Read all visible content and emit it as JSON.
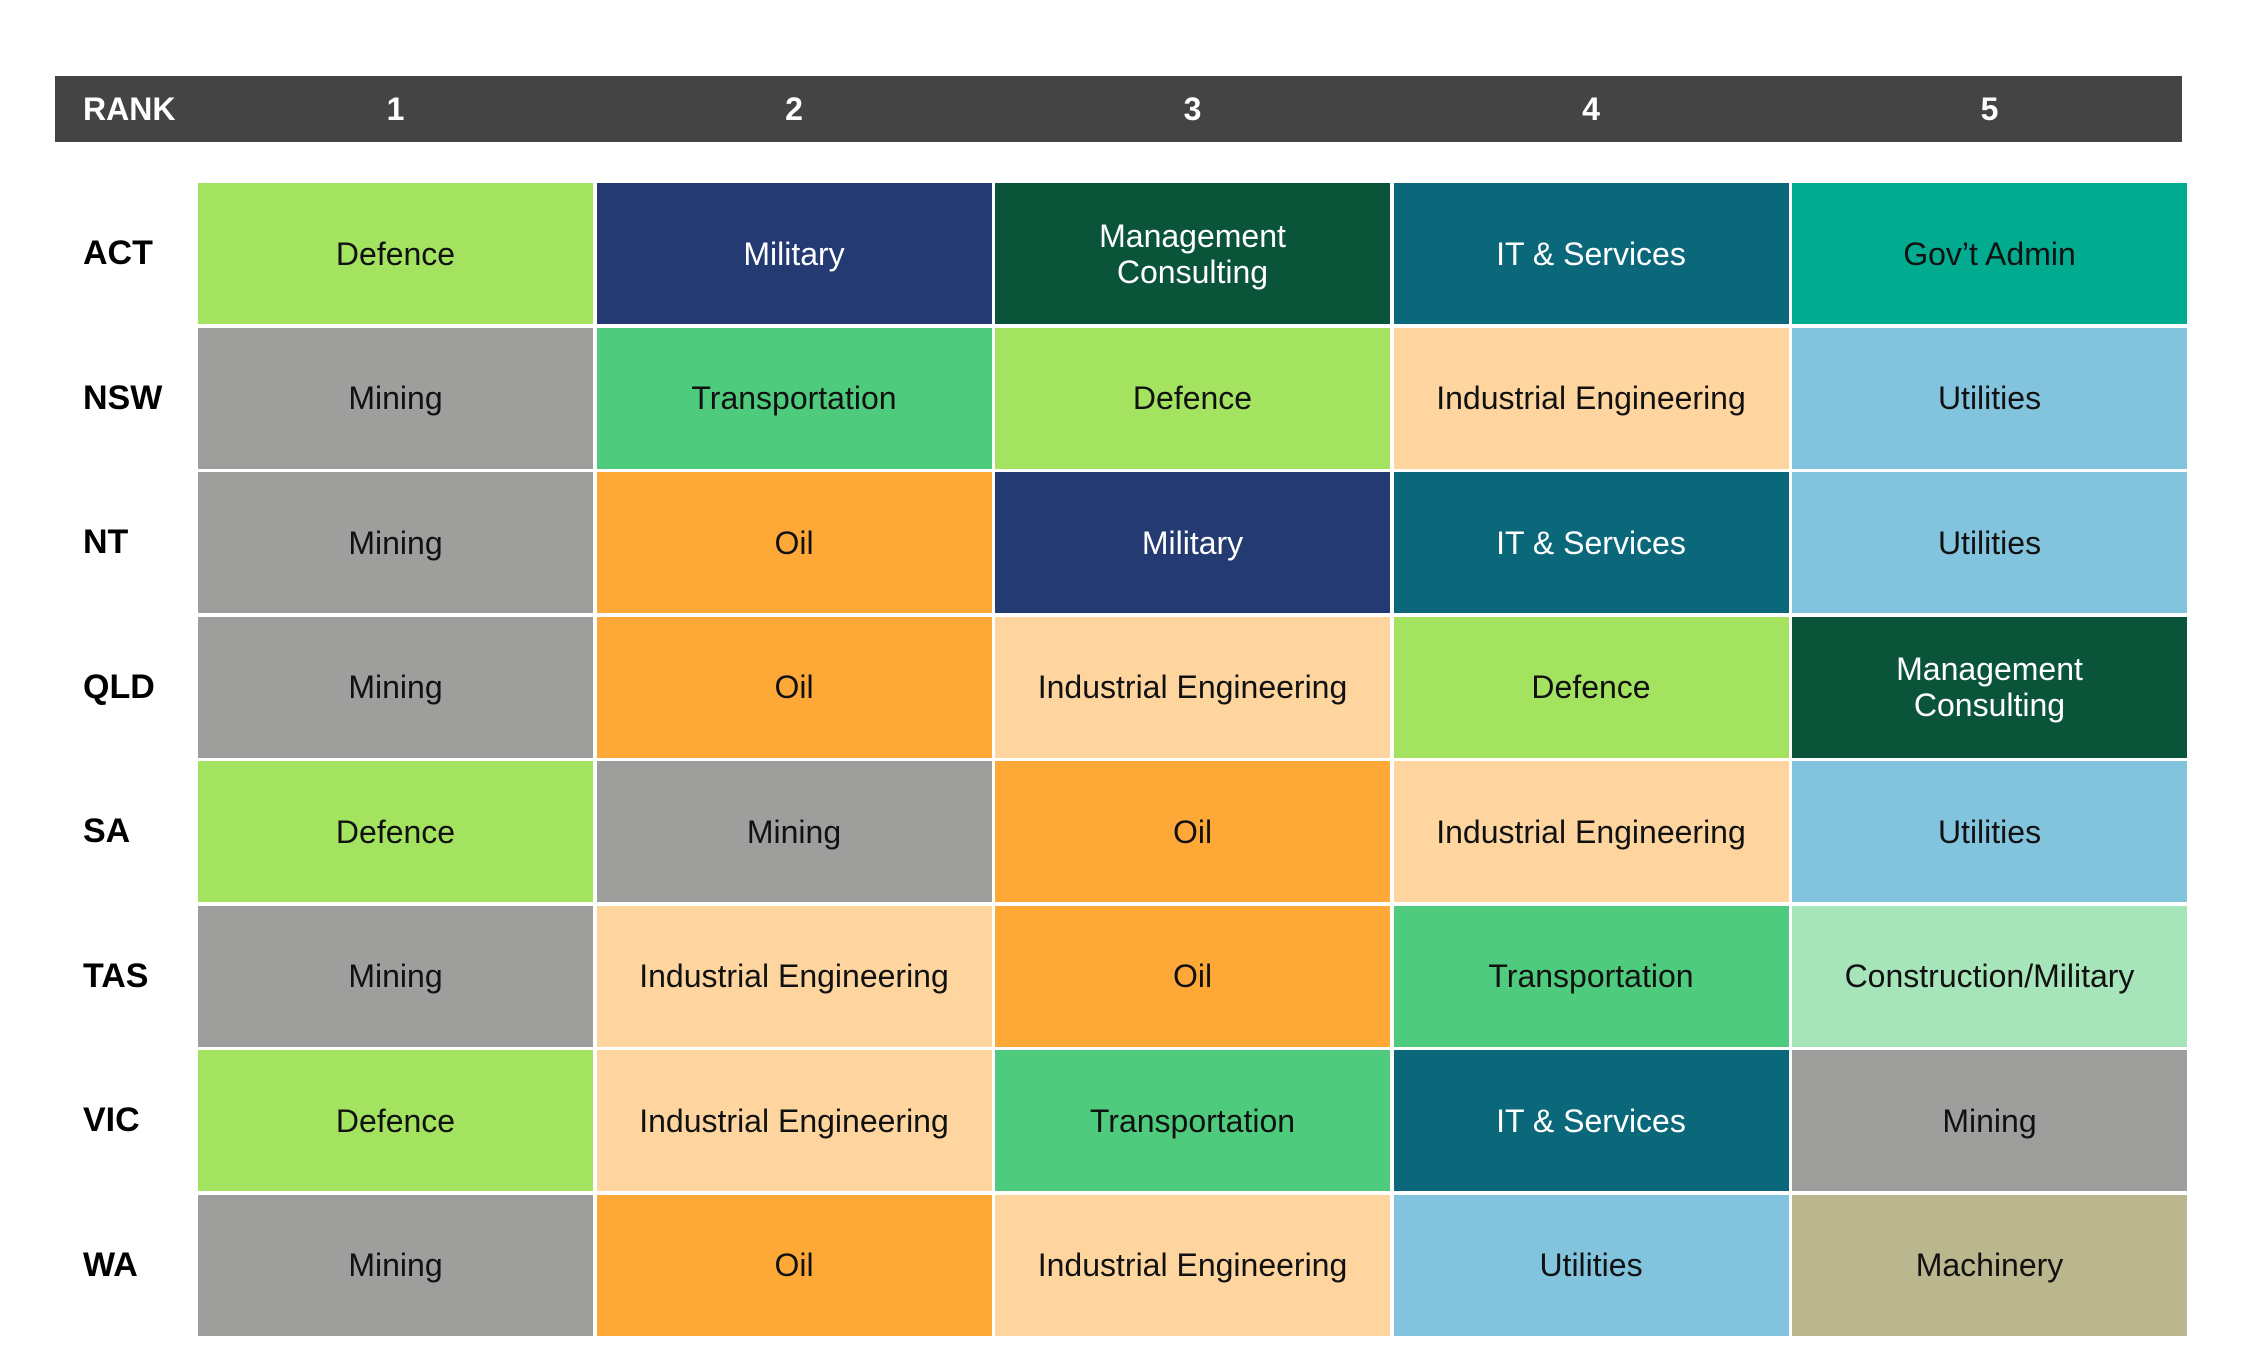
{
  "chart_data": {
    "type": "table",
    "corner_label": "RANK",
    "columns": [
      "1",
      "2",
      "3",
      "4",
      "5"
    ],
    "rows": [
      {
        "label": "ACT",
        "cells": [
          "Defence",
          "Military",
          "Management\nConsulting",
          "IT & Services",
          "Gov’t Admin"
        ]
      },
      {
        "label": "NSW",
        "cells": [
          "Mining",
          "Transportation",
          "Defence",
          "Industrial Engineering",
          "Utilities"
        ]
      },
      {
        "label": "NT",
        "cells": [
          "Mining",
          "Oil",
          "Military",
          "IT & Services",
          "Utilities"
        ]
      },
      {
        "label": "QLD",
        "cells": [
          "Mining",
          "Oil",
          "Industrial Engineering",
          "Defence",
          "Management\nConsulting"
        ]
      },
      {
        "label": "SA",
        "cells": [
          "Defence",
          "Mining",
          "Oil",
          "Industrial Engineering",
          "Utilities"
        ]
      },
      {
        "label": "TAS",
        "cells": [
          "Mining",
          "Industrial Engineering",
          "Oil",
          "Transportation",
          "Construction/Military"
        ]
      },
      {
        "label": "VIC",
        "cells": [
          "Defence",
          "Industrial Engineering",
          "Transportation",
          "IT & Services",
          "Mining"
        ]
      },
      {
        "label": "WA",
        "cells": [
          "Mining",
          "Oil",
          "Industrial Engineering",
          "Utilities",
          "Machinery"
        ]
      }
    ],
    "category_colors": {
      "Defence": {
        "bg": "#a3e35f",
        "fg": "#111111"
      },
      "Military": {
        "bg": "#243a72",
        "fg": "#ffffff"
      },
      "Management\nConsulting": {
        "bg": "#0a553a",
        "fg": "#ffffff"
      },
      "IT & Services": {
        "bg": "#0b687b",
        "fg": "#ffffff"
      },
      "Gov’t Admin": {
        "bg": "#00ab8f",
        "fg": "#111111"
      },
      "Mining": {
        "bg": "#9e9e9c",
        "fg": "#111111"
      },
      "Transportation": {
        "bg": "#4ecb7c",
        "fg": "#111111"
      },
      "Industrial Engineering": {
        "bg": "#fed59e",
        "fg": "#111111"
      },
      "Utilities": {
        "bg": "#82c4de",
        "fg": "#111111"
      },
      "Oil": {
        "bg": "#fda837",
        "fg": "#111111"
      },
      "Construction/Military": {
        "bg": "#a6e4ba",
        "fg": "#111111"
      },
      "Machinery": {
        "bg": "#bab68e",
        "fg": "#111111"
      }
    },
    "header_color": "#444444"
  }
}
